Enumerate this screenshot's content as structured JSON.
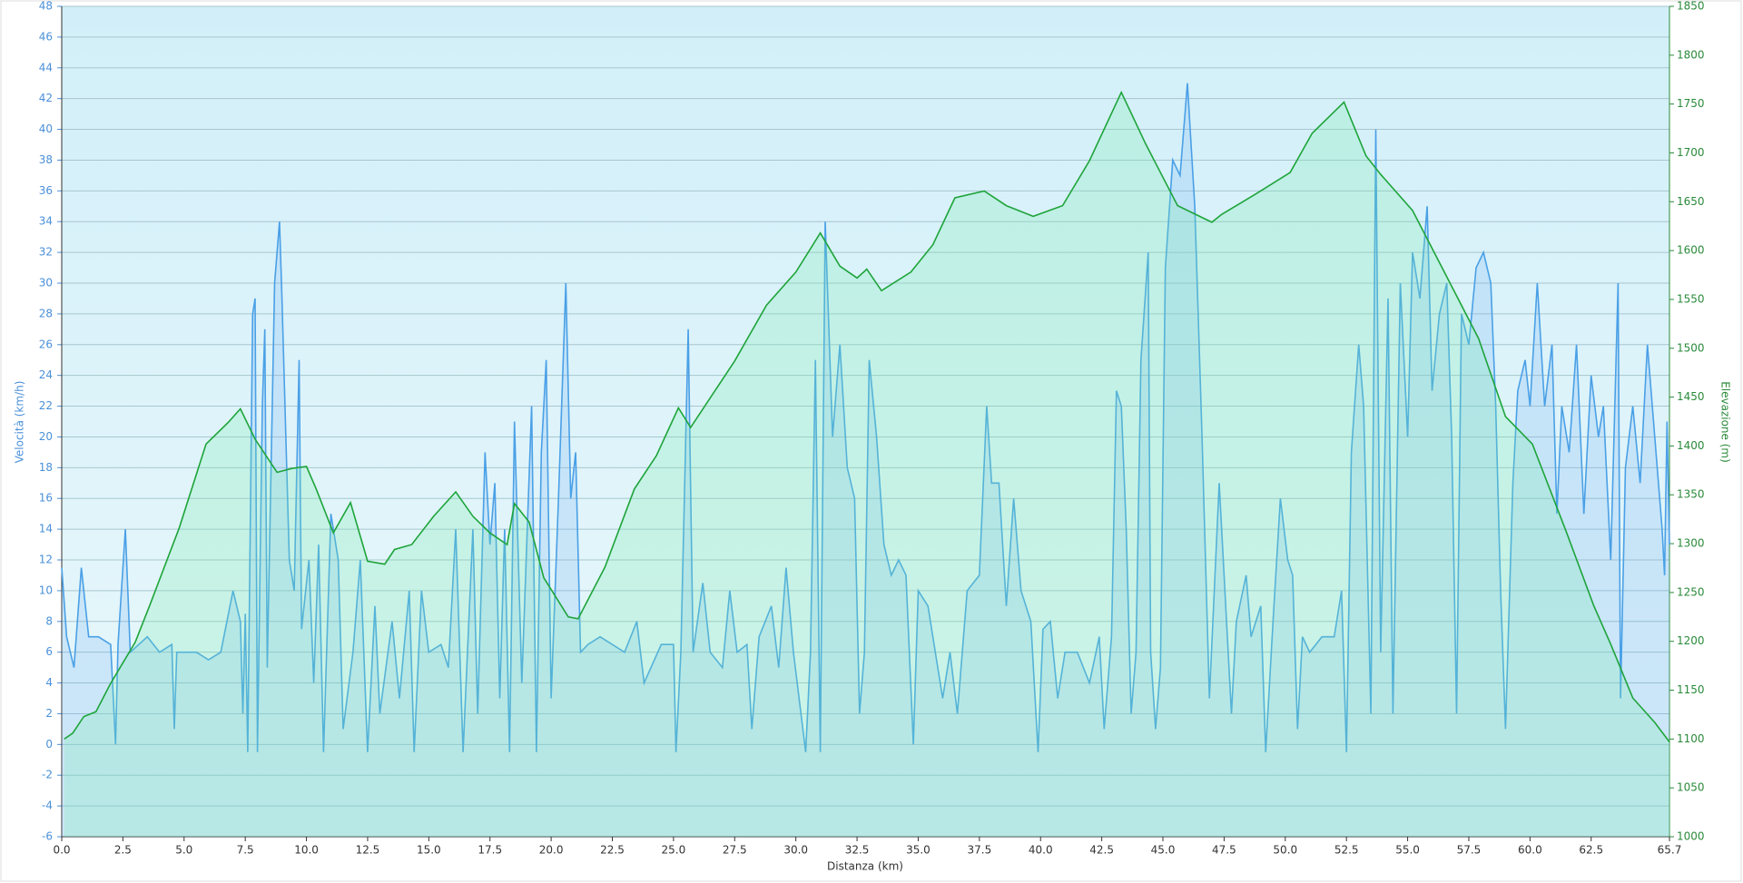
{
  "chart_data": {
    "type": "line",
    "xlabel": "Distanza  (km)",
    "ylabel": "Velocità (km/h)",
    "y2label": "Elevazione (m)",
    "xlim": [
      0,
      65.7
    ],
    "xticks": [
      {
        "value": 0,
        "label": "0.0"
      },
      2.5,
      {
        "value": 5,
        "label": "5.0"
      },
      7.5,
      {
        "value": 10,
        "label": "10.0"
      },
      12.5,
      {
        "value": 15,
        "label": "15.0"
      },
      17.5,
      {
        "value": 20,
        "label": "20.0"
      },
      22.5,
      {
        "value": 25,
        "label": "25.0"
      },
      27.5,
      {
        "value": 30,
        "label": "30.0"
      },
      32.5,
      {
        "value": 35,
        "label": "35.0"
      },
      37.5,
      {
        "value": 40,
        "label": "40.0"
      },
      42.5,
      {
        "value": 45,
        "label": "45.0"
      },
      47.5,
      {
        "value": 50,
        "label": "50.0"
      },
      52.5,
      {
        "value": 55,
        "label": "55.0"
      },
      57.5,
      {
        "value": 60,
        "label": "60.0"
      },
      62.5,
      65.7
    ],
    "ylim": [
      -6,
      48
    ],
    "yticks": [
      -6,
      -4,
      -2,
      0,
      2,
      4,
      6,
      8,
      10,
      12,
      14,
      16,
      18,
      20,
      22,
      24,
      26,
      28,
      30,
      32,
      34,
      36,
      38,
      40,
      42,
      44,
      46,
      48
    ],
    "y2lim": [
      1000,
      1850
    ],
    "y2ticks": [
      1000,
      1050,
      1100,
      1150,
      1200,
      1250,
      1300,
      1350,
      1400,
      1450,
      1500,
      1550,
      1600,
      1650,
      1700,
      1750,
      1800,
      1850
    ],
    "grid": true,
    "series": [
      {
        "color": "#4aa0e6",
        "axis": "y",
        "x": [
          0,
          0.2,
          0.5,
          0.8,
          1.1,
          1.5,
          2.0,
          2.2,
          2.3,
          2.6,
          2.8,
          3.5,
          4.0,
          4.5,
          4.6,
          4.7,
          5.5,
          6.0,
          6.5,
          7.0,
          7.3,
          7.4,
          7.5,
          7.6,
          7.8,
          7.9,
          8.0,
          8.2,
          8.3,
          8.4,
          8.7,
          8.9,
          9.0,
          9.3,
          9.5,
          9.7,
          9.8,
          10.1,
          10.3,
          10.5,
          10.7,
          11.0,
          11.3,
          11.5,
          11.9,
          12.2,
          12.5,
          12.8,
          13.0,
          13.5,
          13.8,
          14.2,
          14.4,
          14.7,
          15.0,
          15.5,
          15.8,
          16.1,
          16.4,
          16.8,
          17.0,
          17.3,
          17.5,
          17.7,
          17.9,
          18.1,
          18.3,
          18.5,
          18.8,
          19.2,
          19.4,
          19.6,
          19.8,
          20.0,
          20.3,
          20.6,
          20.8,
          21.0,
          21.2,
          21.5,
          22.0,
          23.0,
          23.5,
          23.8,
          24.5,
          25.0,
          25.1,
          25.3,
          25.6,
          25.8,
          26.2,
          26.5,
          27.0,
          27.3,
          27.6,
          28.0,
          28.2,
          28.5,
          29.0,
          29.3,
          29.6,
          29.9,
          30.4,
          30.6,
          30.8,
          31.0,
          31.2,
          31.5,
          31.8,
          32.1,
          32.4,
          32.6,
          32.8,
          33.0,
          33.3,
          33.6,
          33.9,
          34.2,
          34.5,
          34.8,
          35.0,
          35.4,
          35.7,
          36.0,
          36.3,
          36.6,
          37.0,
          37.5,
          37.8,
          38.0,
          38.3,
          38.6,
          38.9,
          39.2,
          39.6,
          39.9,
          40.1,
          40.4,
          40.7,
          41.0,
          41.5,
          42.0,
          42.4,
          42.6,
          42.9,
          43.1,
          43.3,
          43.5,
          43.7,
          43.9,
          44.1,
          44.4,
          44.5,
          44.7,
          44.9,
          45.1,
          45.4,
          45.7,
          46.0,
          46.3,
          46.6,
          46.9,
          47.1,
          47.3,
          47.6,
          47.8,
          48.0,
          48.4,
          48.6,
          49.0,
          49.2,
          49.5,
          49.8,
          50.1,
          50.3,
          50.5,
          50.7,
          51.0,
          51.5,
          52.0,
          52.3,
          52.5,
          52.7,
          53.0,
          53.2,
          53.5,
          53.7,
          53.9,
          54.2,
          54.4,
          54.7,
          55.0,
          55.2,
          55.5,
          55.8,
          56.0,
          56.3,
          56.6,
          56.8,
          57.0,
          57.2,
          57.5,
          57.8,
          58.1,
          58.4,
          58.6,
          58.8,
          59.0,
          59.3,
          59.5,
          59.8,
          60.0,
          60.3,
          60.6,
          60.9,
          61.1,
          61.3,
          61.6,
          61.9,
          62.2,
          62.5,
          62.8,
          63.0,
          63.3,
          63.6,
          63.7,
          63.9,
          64.2,
          64.5,
          64.8,
          65.1,
          65.4,
          65.5,
          65.6,
          65.7
        ],
        "values": [
          11.5,
          7,
          5,
          11.5,
          7,
          7,
          6.5,
          0,
          6.5,
          14,
          6,
          7,
          6,
          6.5,
          1,
          6,
          6,
          5.5,
          6,
          10,
          8,
          2,
          8.5,
          -0.5,
          28,
          29,
          -0.5,
          22,
          27,
          5,
          30,
          34,
          29,
          12,
          10,
          25,
          7.5,
          12,
          4,
          13,
          -0.5,
          15,
          12,
          1,
          6,
          12,
          -0.5,
          9,
          2,
          8,
          3,
          10,
          -0.5,
          10,
          6,
          6.5,
          5,
          14,
          -0.5,
          14,
          2,
          19,
          13,
          17,
          3,
          14,
          -0.5,
          21,
          4,
          22,
          -0.5,
          19,
          25,
          3,
          16,
          30,
          16,
          19,
          6,
          6.5,
          7,
          6,
          8,
          4,
          6.5,
          6.5,
          -0.5,
          6,
          27,
          6,
          10.5,
          6,
          5,
          10,
          6,
          6.5,
          1,
          7,
          9,
          5,
          11.5,
          6,
          -0.5,
          6,
          25,
          -0.5,
          34,
          20,
          26,
          18,
          16,
          2,
          6,
          25,
          20,
          13,
          11,
          12,
          11,
          0,
          10,
          9,
          6,
          3,
          6,
          2,
          10,
          11,
          22,
          17,
          17,
          9,
          16,
          10,
          8,
          -0.5,
          7.5,
          8,
          3,
          6,
          6,
          4,
          7,
          1,
          7,
          23,
          22,
          14,
          2,
          6,
          25,
          32,
          6,
          1,
          5,
          31,
          38,
          37,
          43,
          35,
          20,
          3,
          10,
          17,
          8,
          2,
          8,
          11,
          7,
          9,
          -0.5,
          8,
          16,
          12,
          11,
          1,
          7,
          6,
          7,
          7,
          10,
          -0.5,
          19,
          26,
          22,
          2,
          40,
          6,
          29,
          2,
          30,
          20,
          32,
          29,
          35,
          23,
          28,
          30,
          20,
          2,
          28,
          26,
          31,
          32,
          30,
          22,
          10,
          1,
          17,
          23,
          25,
          22,
          30,
          22,
          26,
          15,
          22,
          19,
          26,
          15,
          24,
          20,
          22,
          12,
          30,
          3,
          18,
          22,
          17,
          26,
          20,
          14,
          11,
          21,
          13
        ]
      },
      {
        "color": "#1ea43a",
        "axis": "y2",
        "x": [
          0.1,
          0.45,
          0.9,
          1.4,
          2.0,
          3.0,
          3.6,
          4.8,
          5.9,
          6.8,
          7.3,
          7.9,
          8.8,
          9.4,
          10.0,
          10.4,
          11.1,
          11.8,
          12.5,
          13.2,
          13.6,
          14.3,
          15.2,
          16.1,
          16.8,
          17.5,
          18.2,
          18.5,
          19.1,
          19.7,
          20.7,
          21.1,
          22.2,
          23.4,
          24.3,
          25.2,
          25.7,
          26.6,
          27.5,
          28.8,
          30.0,
          31.0,
          31.8,
          32.5,
          32.9,
          33.5,
          34.7,
          35.6,
          36.5,
          37.7,
          38.6,
          39.7,
          40.9,
          42.0,
          43.3,
          44.3,
          45.6,
          47.0,
          47.4,
          48.8,
          50.2,
          51.1,
          52.4,
          53.3,
          53.9,
          55.2,
          56.5,
          57.9,
          59.0,
          60.1,
          61.5,
          62.6,
          63.3,
          64.2,
          65.1,
          65.7
        ],
        "values": [
          1100,
          1106,
          1123,
          1128,
          1157,
          1199,
          1237,
          1316,
          1402,
          1424,
          1438,
          1407,
          1373,
          1377,
          1379,
          1356,
          1311,
          1342,
          1282,
          1279,
          1294,
          1299,
          1328,
          1353,
          1328,
          1311,
          1299,
          1341,
          1322,
          1265,
          1225,
          1223,
          1276,
          1356,
          1390,
          1439,
          1419,
          1453,
          1487,
          1544,
          1578,
          1618,
          1584,
          1572,
          1581,
          1559,
          1578,
          1606,
          1654,
          1661,
          1646,
          1635,
          1646,
          1692,
          1762,
          1709,
          1646,
          1629,
          1637,
          1658,
          1680,
          1720,
          1752,
          1697,
          1678,
          1641,
          1578,
          1510,
          1430,
          1402,
          1311,
          1237,
          1197,
          1142,
          1117,
          1097
        ]
      }
    ]
  }
}
